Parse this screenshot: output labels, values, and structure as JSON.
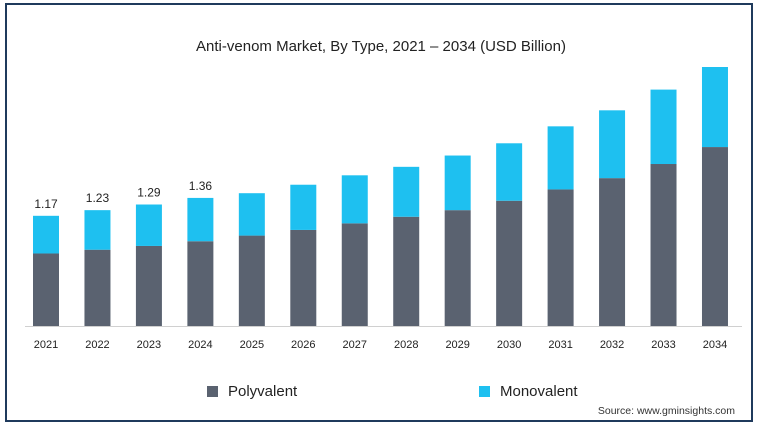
{
  "chart_data": {
    "type": "bar",
    "stacked": true,
    "title": "Anti-venom Market, By Type, 2021 – 2034 (USD Billion)",
    "categories": [
      "2021",
      "2022",
      "2023",
      "2024",
      "2025",
      "2026",
      "2027",
      "2028",
      "2029",
      "2030",
      "2031",
      "2032",
      "2033",
      "2034"
    ],
    "series": [
      {
        "name": "Polyvalent",
        "color": "#5a6270",
        "values": [
          0.77,
          0.81,
          0.85,
          0.9,
          0.96,
          1.02,
          1.09,
          1.16,
          1.23,
          1.33,
          1.45,
          1.57,
          1.72,
          1.9
        ]
      },
      {
        "name": "Monovalent",
        "color": "#1ec0f0",
        "values": [
          0.4,
          0.42,
          0.44,
          0.46,
          0.45,
          0.48,
          0.51,
          0.53,
          0.58,
          0.61,
          0.67,
          0.72,
          0.79,
          0.85
        ]
      }
    ],
    "totals_labels": [
      "1.17",
      "1.23",
      "1.29",
      "1.36"
    ],
    "ylim": [
      0,
      2.75
    ],
    "grid": false,
    "legend_position": "bottom"
  },
  "source": "Source: www.gminsights.com"
}
